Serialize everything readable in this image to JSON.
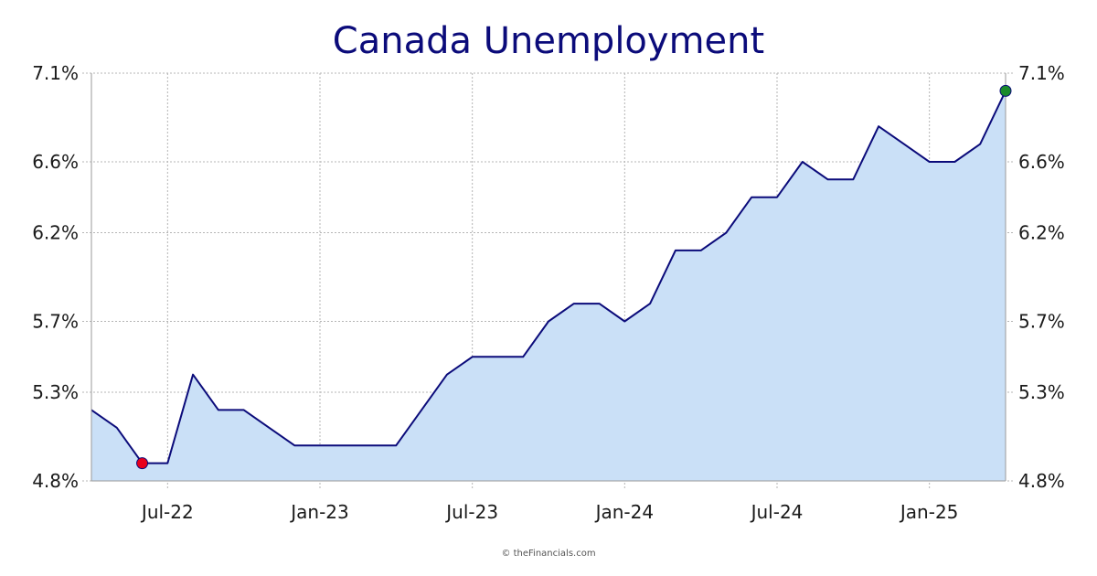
{
  "chart_data": {
    "type": "area",
    "title": "Canada Unemployment",
    "xlabel": "",
    "ylabel": "",
    "x_tick_labels": [
      "Jul-22",
      "Jan-23",
      "Jul-23",
      "Jan-24",
      "Jul-24",
      "Jan-25"
    ],
    "x_tick_dates": [
      "2022-07",
      "2023-01",
      "2023-07",
      "2024-01",
      "2024-07",
      "2025-01"
    ],
    "y_tick_labels": [
      "7.1%",
      "6.6%",
      "6.2%",
      "5.7%",
      "5.3%",
      "4.8%"
    ],
    "y_tick_values": [
      7.1,
      6.6,
      6.2,
      5.7,
      5.3,
      4.8
    ],
    "ylim": [
      4.8,
      7.1
    ],
    "xlim": [
      "2022-04",
      "2025-04"
    ],
    "grid": true,
    "right_axis": true,
    "series": [
      {
        "dates": [
          "2022-04",
          "2022-05",
          "2022-06",
          "2022-07",
          "2022-08",
          "2022-09",
          "2022-10",
          "2022-11",
          "2022-12",
          "2023-01",
          "2023-02",
          "2023-03",
          "2023-04",
          "2023-05",
          "2023-06",
          "2023-07",
          "2023-08",
          "2023-09",
          "2023-10",
          "2023-11",
          "2023-12",
          "2024-01",
          "2024-02",
          "2024-03",
          "2024-04",
          "2024-05",
          "2024-06",
          "2024-07",
          "2024-08",
          "2024-09",
          "2024-10",
          "2024-11",
          "2024-12",
          "2025-01",
          "2025-02",
          "2025-03",
          "2025-04"
        ],
        "values": [
          5.2,
          5.1,
          4.9,
          4.9,
          5.4,
          5.2,
          5.2,
          5.1,
          5.0,
          5.0,
          5.0,
          5.0,
          5.0,
          5.2,
          5.4,
          5.5,
          5.5,
          5.5,
          5.7,
          5.8,
          5.8,
          5.7,
          5.8,
          6.1,
          6.1,
          6.2,
          6.4,
          6.4,
          6.6,
          6.5,
          6.5,
          6.8,
          6.7,
          6.6,
          6.6,
          6.7,
          7.0
        ]
      }
    ],
    "min_marker": {
      "date": "2022-06",
      "value": 4.9
    },
    "max_marker": {
      "date": "2025-04",
      "value": 7.0
    },
    "colors": {
      "title": "#0b0b7a",
      "line": "#0b0b7a",
      "fill": "#cae0f7",
      "min_marker": "#e8001c",
      "max_marker": "#1a8a2a"
    }
  },
  "footer": {
    "credit": "© theFinancials.com"
  }
}
